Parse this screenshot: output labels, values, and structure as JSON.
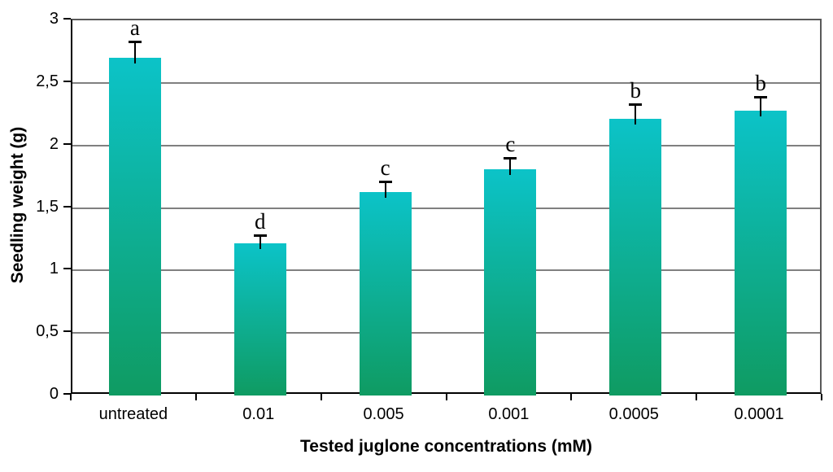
{
  "chart_data": {
    "type": "bar",
    "title": "",
    "xlabel": "Tested juglone concentrations (mM)",
    "ylabel": "Seedling weight (g)",
    "categories": [
      "untreated",
      "0.01",
      "0.005",
      "0.001",
      "0.0005",
      "0.0001"
    ],
    "values": [
      2.7,
      1.22,
      1.63,
      1.81,
      2.21,
      2.28
    ],
    "error_plus": [
      0.13,
      0.06,
      0.08,
      0.09,
      0.12,
      0.11
    ],
    "significance_letters": [
      "a",
      "d",
      "c",
      "c",
      "b",
      "b"
    ],
    "ylim": [
      0,
      3
    ],
    "ytick_step": 0.5,
    "ytick_labels": [
      "0",
      "0,5",
      "1",
      "1,5",
      "2",
      "2,5",
      "3"
    ],
    "grid": true,
    "legend": "none",
    "bar_gradient_top": "#0cc3c8",
    "bar_gradient_bottom": "#0f9b62",
    "gridline_color": "#808080",
    "axis_color": "#000000",
    "plot_border_color": "#595959",
    "background_color": "#ffffff"
  }
}
